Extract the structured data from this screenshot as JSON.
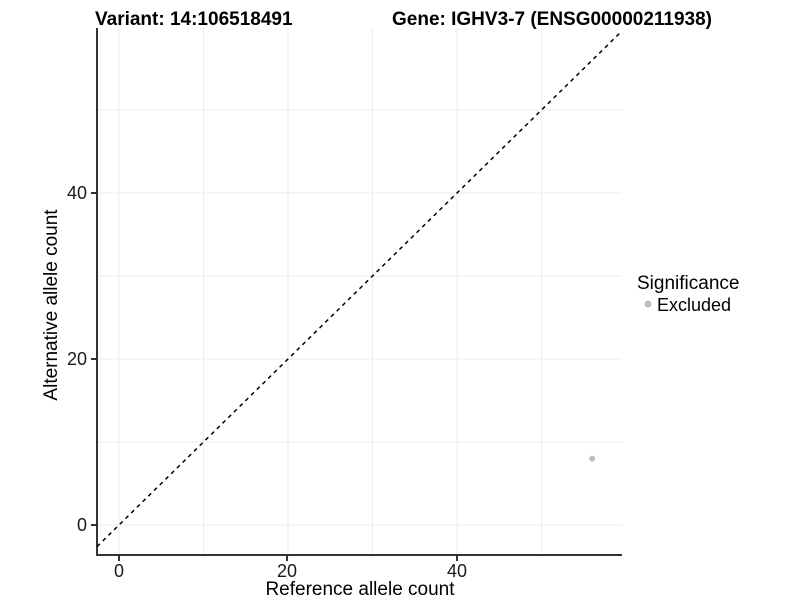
{
  "chart_data": {
    "type": "scatter",
    "titles": {
      "left": "Variant: 14:106518491",
      "right": "Gene: IGHV3-7 (ENSG00000211938)"
    },
    "xlabel": "Reference allele count",
    "ylabel": "Alternative allele count",
    "x_ticks": [
      "0",
      "20",
      "40"
    ],
    "y_ticks": [
      "0",
      "20",
      "40"
    ],
    "x_tick_values": [
      0,
      20,
      40
    ],
    "y_tick_values": [
      0,
      20,
      40
    ],
    "gridline_values": [
      0,
      10,
      20,
      30,
      40,
      50
    ],
    "xlim": [
      -2.6,
      59.5
    ],
    "ylim": [
      -3.6,
      59.9
    ],
    "grid": true,
    "legend_position": "right",
    "reference_line": {
      "slope": 1,
      "intercept": 0,
      "style": "dashed",
      "color": "#000000"
    },
    "series": [
      {
        "name": "Excluded",
        "color": "#bebebe",
        "points": [
          {
            "x": 56,
            "y": 8
          }
        ]
      }
    ],
    "legend": {
      "title": "Significance",
      "items": [
        {
          "label": "Excluded",
          "color": "#bebebe"
        }
      ]
    },
    "colors": {
      "gridline": "#ebebeb",
      "axis": "#333333",
      "background": "#ffffff",
      "point": "#bebebe"
    }
  }
}
